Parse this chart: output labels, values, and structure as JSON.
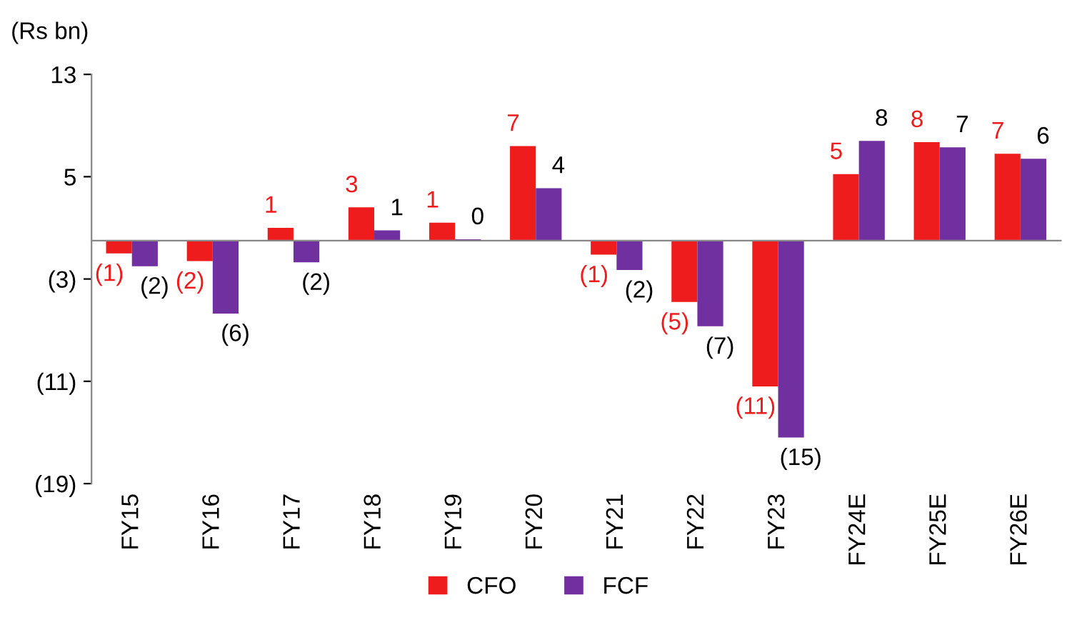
{
  "chart_data": {
    "type": "bar",
    "ylabel": "(Rs bn)",
    "categories": [
      "FY15",
      "FY16",
      "FY17",
      "FY18",
      "FY19",
      "FY20",
      "FY21",
      "FY22",
      "FY23",
      "FY24E",
      "FY25E",
      "FY26E"
    ],
    "series": [
      {
        "name": "CFO",
        "color": "#ee1c1c",
        "values": [
          -1.0,
          -1.6,
          1.0,
          2.6,
          1.4,
          7.4,
          -1.1,
          -4.8,
          -11.4,
          5.2,
          7.7,
          6.8
        ],
        "value_labels": [
          "(1)",
          "(2)",
          "1",
          "3",
          "1",
          "7",
          "(1)",
          "(5)",
          "(11)",
          "5",
          "8",
          "7"
        ]
      },
      {
        "name": "FCF",
        "color": "#7030a0",
        "values": [
          -2.0,
          -5.7,
          -1.7,
          0.8,
          0.1,
          4.1,
          -2.3,
          -6.7,
          -15.4,
          7.8,
          7.3,
          6.4
        ],
        "value_labels": [
          "(2)",
          "(6)",
          "(2)",
          "1",
          "0",
          "4",
          "(2)",
          "(7)",
          "(15)",
          "8",
          "7",
          "6"
        ]
      }
    ],
    "ylim": [
      -19,
      13
    ],
    "yticks": [
      {
        "value": -19,
        "label": "(19)"
      },
      {
        "value": -11,
        "label": "(11)"
      },
      {
        "value": -3,
        "label": "(3)"
      },
      5,
      13
    ],
    "grid": false,
    "legend": "bottom"
  }
}
